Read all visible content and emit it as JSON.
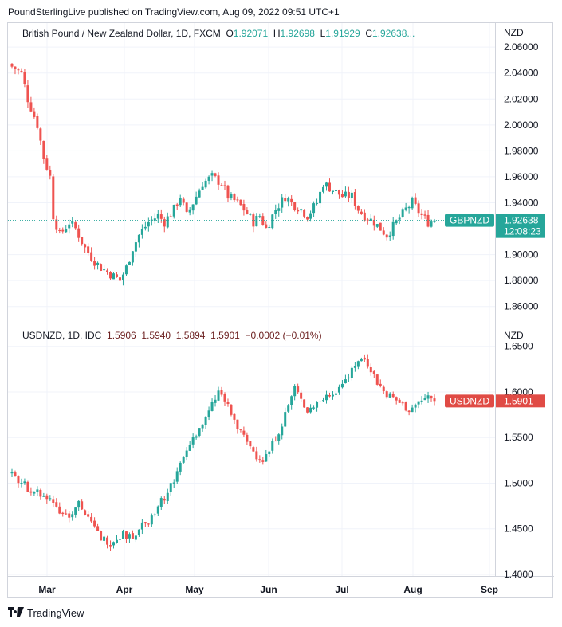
{
  "header": {
    "published": "PoundSterlingLive published on TradingView.com, Aug 09, 2022 09:51 UTC+1"
  },
  "footer": {
    "brand": "TradingView"
  },
  "chart_data": [
    {
      "type": "candlestick",
      "title": "British Pound / New Zealand Dollar, 1D, FXCM",
      "currency": "NZD",
      "ohlc_legend": {
        "o_label": "O",
        "o": "1.92071",
        "h_label": "H",
        "h": "1.92698",
        "l_label": "L",
        "l": "1.91929",
        "c_label": "C",
        "c": "1.92638..."
      },
      "price_label": {
        "symbol": "GBPNZD",
        "value": "1.92638",
        "countdown": "12:08:23"
      },
      "y_ticks": [
        "2.06000",
        "2.04000",
        "2.02000",
        "2.00000",
        "1.98000",
        "1.96000",
        "1.94000",
        "1.90000",
        "1.88000",
        "1.86000"
      ],
      "y_tick_values": [
        2.06,
        2.04,
        2.02,
        2.0,
        1.98,
        1.96,
        1.94,
        1.9,
        1.88,
        1.86
      ],
      "ylim": [
        1.85,
        2.065
      ],
      "last": 1.92638,
      "close_path": [
        [
          0,
          2.045
        ],
        [
          3,
          2.04
        ],
        [
          5,
          2.02
        ],
        [
          8,
          2.0
        ],
        [
          10,
          1.975
        ],
        [
          12,
          1.96
        ],
        [
          13,
          1.93
        ],
        [
          15,
          1.915
        ],
        [
          18,
          1.925
        ],
        [
          20,
          1.92
        ],
        [
          23,
          1.905
        ],
        [
          26,
          1.895
        ],
        [
          28,
          1.89
        ],
        [
          31,
          1.885
        ],
        [
          34,
          1.88
        ],
        [
          36,
          1.89
        ],
        [
          38,
          1.905
        ],
        [
          40,
          1.915
        ],
        [
          43,
          1.925
        ],
        [
          46,
          1.93
        ],
        [
          48,
          1.925
        ],
        [
          51,
          1.935
        ],
        [
          53,
          1.945
        ],
        [
          55,
          1.93
        ],
        [
          58,
          1.945
        ],
        [
          60,
          1.955
        ],
        [
          63,
          1.96
        ],
        [
          66,
          1.955
        ],
        [
          68,
          1.945
        ],
        [
          71,
          1.94
        ],
        [
          73,
          1.935
        ],
        [
          76,
          1.925
        ],
        [
          78,
          1.93
        ],
        [
          80,
          1.92
        ],
        [
          83,
          1.935
        ],
        [
          86,
          1.945
        ],
        [
          88,
          1.94
        ],
        [
          91,
          1.935
        ],
        [
          93,
          1.93
        ],
        [
          96,
          1.94
        ],
        [
          98,
          1.955
        ],
        [
          101,
          1.95
        ],
        [
          104,
          1.945
        ],
        [
          107,
          1.945
        ],
        [
          109,
          1.935
        ],
        [
          111,
          1.93
        ],
        [
          114,
          1.925
        ],
        [
          116,
          1.92
        ],
        [
          118,
          1.915
        ],
        [
          121,
          1.925
        ],
        [
          124,
          1.935
        ],
        [
          126,
          1.94
        ],
        [
          129,
          1.93
        ],
        [
          131,
          1.925
        ],
        [
          133,
          1.9264
        ]
      ],
      "wave_seed": 7
    },
    {
      "type": "candlestick",
      "title": "USDNZD, 1D, IDC",
      "currency": "NZD",
      "ohlc_legend": {
        "o": "1.5906",
        "h": "1.5940",
        "l": "1.5894",
        "c": "1.5901",
        "change": "−0.0002 (−0.01%)"
      },
      "price_label": {
        "symbol": "USDNZD",
        "value": "1.5901"
      },
      "y_ticks": [
        "1.6500",
        "1.6000",
        "1.5500",
        "1.5000",
        "1.4500",
        "1.4000"
      ],
      "y_tick_values": [
        1.65,
        1.6,
        1.55,
        1.5,
        1.45,
        1.4
      ],
      "ylim": [
        1.4,
        1.655
      ],
      "last": 1.5901,
      "close_path": [
        [
          0,
          1.508
        ],
        [
          3,
          1.5
        ],
        [
          5,
          1.495
        ],
        [
          8,
          1.49
        ],
        [
          10,
          1.485
        ],
        [
          13,
          1.48
        ],
        [
          15,
          1.47
        ],
        [
          18,
          1.465
        ],
        [
          20,
          1.475
        ],
        [
          21,
          1.48
        ],
        [
          23,
          1.465
        ],
        [
          25,
          1.455
        ],
        [
          28,
          1.44
        ],
        [
          31,
          1.435
        ],
        [
          33,
          1.44
        ],
        [
          35,
          1.445
        ],
        [
          37,
          1.44
        ],
        [
          39,
          1.445
        ],
        [
          41,
          1.455
        ],
        [
          43,
          1.46
        ],
        [
          45,
          1.47
        ],
        [
          47,
          1.48
        ],
        [
          49,
          1.49
        ],
        [
          51,
          1.505
        ],
        [
          53,
          1.52
        ],
        [
          55,
          1.535
        ],
        [
          57,
          1.55
        ],
        [
          59,
          1.56
        ],
        [
          61,
          1.57
        ],
        [
          63,
          1.585
        ],
        [
          65,
          1.6
        ],
        [
          67,
          1.59
        ],
        [
          69,
          1.575
        ],
        [
          71,
          1.56
        ],
        [
          73,
          1.55
        ],
        [
          75,
          1.54
        ],
        [
          77,
          1.53
        ],
        [
          79,
          1.525
        ],
        [
          81,
          1.535
        ],
        [
          83,
          1.55
        ],
        [
          85,
          1.565
        ],
        [
          87,
          1.585
        ],
        [
          89,
          1.605
        ],
        [
          91,
          1.59
        ],
        [
          93,
          1.58
        ],
        [
          95,
          1.585
        ],
        [
          97,
          1.59
        ],
        [
          99,
          1.595
        ],
        [
          101,
          1.6
        ],
        [
          103,
          1.605
        ],
        [
          105,
          1.615
        ],
        [
          107,
          1.625
        ],
        [
          109,
          1.635
        ],
        [
          111,
          1.635
        ],
        [
          113,
          1.625
        ],
        [
          115,
          1.61
        ],
        [
          117,
          1.6
        ],
        [
          119,
          1.595
        ],
        [
          121,
          1.59
        ],
        [
          123,
          1.585
        ],
        [
          125,
          1.58
        ],
        [
          127,
          1.585
        ],
        [
          129,
          1.59
        ],
        [
          131,
          1.595
        ],
        [
          133,
          1.5901
        ]
      ],
      "wave_seed": 19
    }
  ],
  "x_axis": {
    "ticks": [
      "Mar",
      "Apr",
      "May",
      "Jun",
      "Jul",
      "Aug",
      "Sep"
    ],
    "tick_days": [
      0,
      0,
      0,
      0,
      0,
      0,
      0
    ]
  },
  "colors": {
    "up": "#26a69a",
    "down": "#ef5350",
    "grid": "#f0f3fa",
    "border": "#d1d4dc",
    "label_green": "#26a69a",
    "label_red": "#e04b45"
  }
}
